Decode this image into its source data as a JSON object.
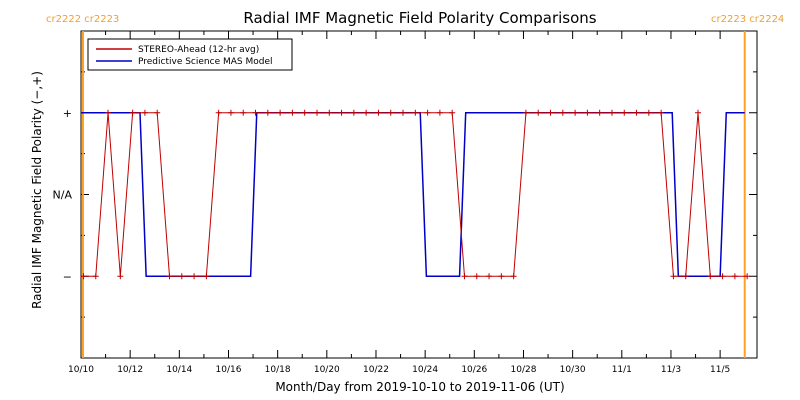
{
  "chart_data": {
    "type": "line",
    "title": "Radial IMF Magnetic Field Polarity Comparisons",
    "xlabel": "Month/Day from 2019-10-10 to 2019-11-06 (UT)",
    "ylabel": "Radial IMF Magnetic Field Polarity (−,+)",
    "x_ticks": [
      "10/10",
      "10/12",
      "10/14",
      "10/16",
      "10/18",
      "10/20",
      "10/22",
      "10/24",
      "10/26",
      "10/28",
      "10/30",
      "11/1",
      "11/3",
      "11/5"
    ],
    "x_tick_days": [
      0,
      2,
      4,
      6,
      8,
      10,
      12,
      14,
      16,
      18,
      20,
      22,
      24,
      26
    ],
    "xlim": [
      0,
      27.5
    ],
    "y_ticks": [
      "+",
      "N/A",
      "−"
    ],
    "y_tick_values": [
      1,
      0,
      -1
    ],
    "ylim": [
      -2,
      2
    ],
    "carrington_left": [
      "cr2222",
      "cr2223"
    ],
    "carrington_right": [
      "cr2223",
      "cr2224"
    ],
    "carrington_marker_days": [
      0.08,
      27.0
    ],
    "colors": {
      "stereo": "#c00000",
      "model": "#0000c8",
      "carrington": "#ffa020"
    },
    "series": [
      {
        "name": "STEREO-Ahead (12-hr avg)",
        "x": [
          0.1,
          0.6,
          1.1,
          1.6,
          2.1,
          2.6,
          3.1,
          3.6,
          4.1,
          4.6,
          5.1,
          5.6,
          6.1,
          6.6,
          7.1,
          7.6,
          8.1,
          8.6,
          9.1,
          9.6,
          10.1,
          10.6,
          11.1,
          11.6,
          12.1,
          12.6,
          13.1,
          13.6,
          14.1,
          14.6,
          15.1,
          15.6,
          16.1,
          16.6,
          17.1,
          17.6,
          18.1,
          18.6,
          19.1,
          19.6,
          20.1,
          20.6,
          21.1,
          21.6,
          22.1,
          22.6,
          23.1,
          23.6,
          24.1,
          24.6,
          25.1,
          25.6,
          26.1,
          26.6,
          27.1
        ],
        "values": [
          -1,
          -1,
          1,
          -1,
          1,
          1,
          1,
          -1,
          -1,
          -1,
          -1,
          1,
          1,
          1,
          1,
          1,
          1,
          1,
          1,
          1,
          1,
          1,
          1,
          1,
          1,
          1,
          1,
          1,
          1,
          1,
          1,
          -1,
          -1,
          -1,
          -1,
          -1,
          1,
          1,
          1,
          1,
          1,
          1,
          1,
          1,
          1,
          1,
          1,
          1,
          -1,
          -1,
          1,
          -1,
          -1,
          -1,
          -1
        ]
      },
      {
        "name": "Predictive Science MAS Model",
        "x": [
          0.0,
          2.4,
          2.65,
          6.9,
          7.15,
          13.8,
          14.05,
          15.4,
          15.65,
          24.05,
          24.3,
          26.0,
          26.25,
          27.0
        ],
        "values": [
          1,
          1,
          -1,
          -1,
          1,
          1,
          -1,
          -1,
          1,
          1,
          -1,
          -1,
          1,
          1
        ]
      }
    ],
    "legend_position": "top-left",
    "grid": false
  }
}
